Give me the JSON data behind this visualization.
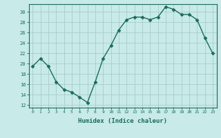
{
  "x": [
    0,
    1,
    2,
    3,
    4,
    5,
    6,
    7,
    8,
    9,
    10,
    11,
    12,
    13,
    14,
    15,
    16,
    17,
    18,
    19,
    20,
    21,
    22,
    23
  ],
  "y": [
    19.5,
    21.0,
    19.5,
    16.5,
    15.0,
    14.5,
    13.5,
    12.5,
    16.5,
    21.0,
    23.5,
    26.5,
    28.5,
    29.0,
    29.0,
    28.5,
    29.0,
    31.0,
    30.5,
    29.5,
    29.5,
    28.5,
    25.0,
    22.0
  ],
  "line_color": "#1a6b5a",
  "marker": "D",
  "markersize": 2.5,
  "linewidth": 1.0,
  "xlabel": "Humidex (Indice chaleur)",
  "xlabel_fontsize": 6.5,
  "bg_color": "#c8eae8",
  "grid_color": "#a0c8c4",
  "yticks": [
    12,
    14,
    16,
    18,
    20,
    22,
    24,
    26,
    28,
    30
  ],
  "xticks": [
    0,
    1,
    2,
    3,
    4,
    5,
    6,
    7,
    8,
    9,
    10,
    11,
    12,
    13,
    14,
    15,
    16,
    17,
    18,
    19,
    20,
    21,
    22,
    23
  ],
  "ylim": [
    11.5,
    31.5
  ],
  "xlim": [
    -0.5,
    23.5
  ]
}
